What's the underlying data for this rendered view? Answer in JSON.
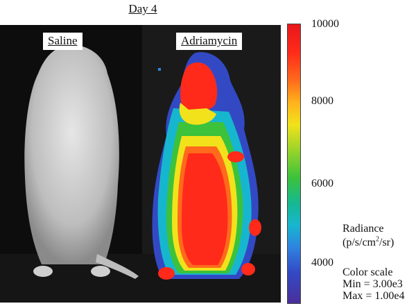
{
  "figure": {
    "day_label": "Day 4",
    "panels": [
      {
        "label": "Saline"
      },
      {
        "label": "Adriamycin"
      }
    ]
  },
  "colorbar": {
    "ticks": [
      "10000",
      "8000",
      "6000",
      "4000"
    ],
    "radiance_title": "Radiance",
    "units_prefix": "(p/s/cm",
    "units_exp": "2",
    "units_suffix": "/sr)",
    "color_scale_title": "Color scale",
    "min_text": "Min = 3.00e3",
    "max_text": "Max = 1.00e4"
  },
  "colors": {
    "heat_red": "#ff2a1a",
    "heat_yellow": "#f2e21b",
    "heat_green": "#3cc23b",
    "heat_blue": "#2f83e0",
    "heat_violet": "#4a2f9b",
    "mouse_white": "#dcdcdc",
    "background": "#0b0b0b"
  }
}
